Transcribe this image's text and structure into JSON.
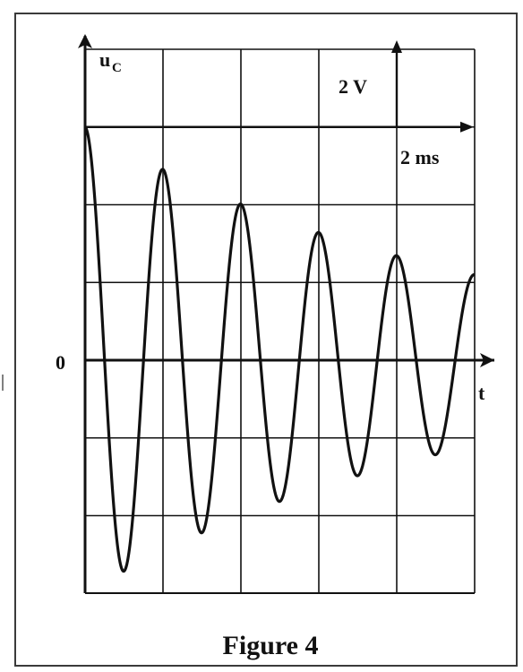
{
  "chart_data": {
    "type": "line",
    "title": "",
    "caption": "Figure 4",
    "ylabel_main": "u",
    "ylabel_sub": "C",
    "xlabel": "t",
    "origin_label": "0",
    "scale": {
      "vertical": "2 V",
      "horizontal": "2 ms"
    },
    "axis_units_per_division": {
      "x_ms": 2,
      "y_V": 2
    },
    "xlim_ms": [
      0,
      10
    ],
    "ylim_V": [
      -6,
      8
    ],
    "grid": true,
    "series": [
      {
        "x": [
          0,
          2,
          4,
          6,
          8,
          10
        ],
        "y": [
          6.0,
          4.9,
          4.0,
          3.3,
          2.7,
          2.2
        ],
        "envelope": "exponentially decaying oscillation",
        "period_ms": 2,
        "minima_x": [
          1,
          3,
          5,
          7,
          9
        ],
        "minima_y": [
          -5.4,
          -4.5,
          -3.6,
          -3.0,
          -2.4
        ]
      }
    ]
  },
  "colors": {
    "ink": "#111111",
    "frame": "#3a3a3a",
    "background": "#ffffff"
  }
}
